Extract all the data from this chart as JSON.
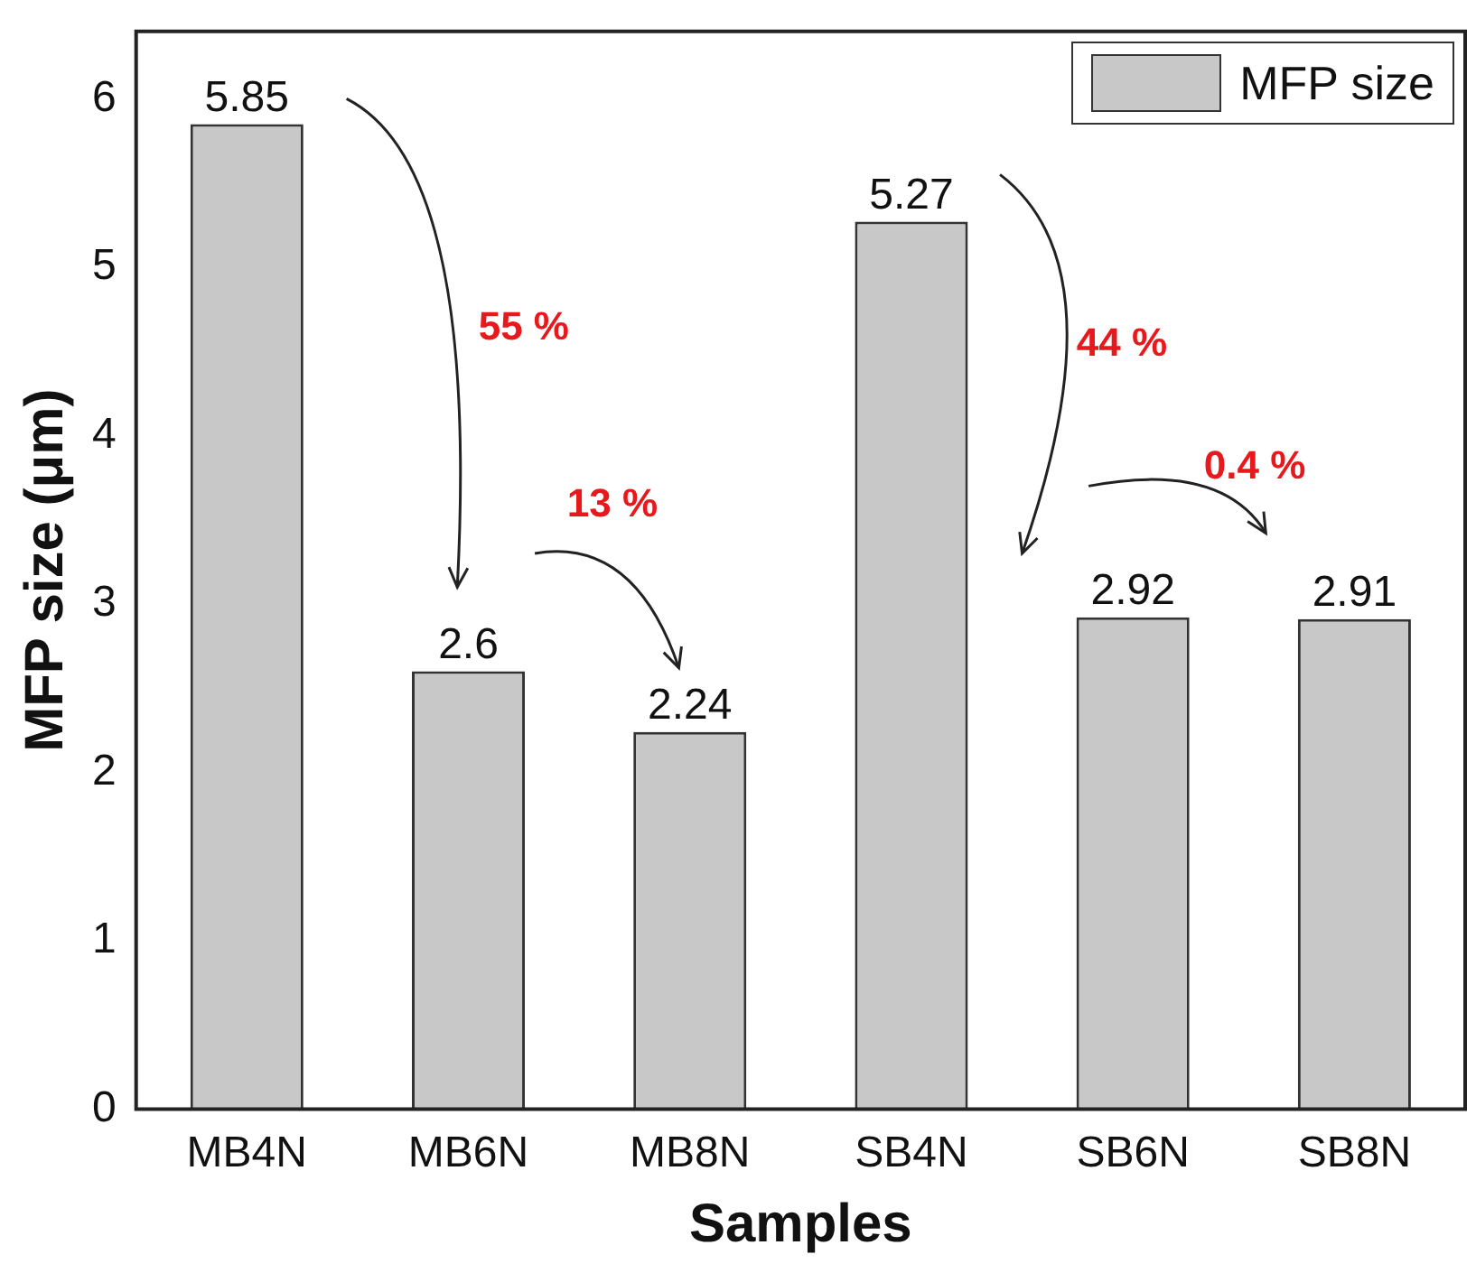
{
  "chart_data": {
    "type": "bar",
    "xlabel": "Samples",
    "ylabel": "MFP size (μm)",
    "categories": [
      "MB4N",
      "MB6N",
      "MB8N",
      "SB4N",
      "SB6N",
      "SB8N"
    ],
    "series": [
      {
        "name": "MFP size",
        "color": "#c8c8c8",
        "values": [
          5.85,
          2.6,
          2.24,
          5.27,
          2.92,
          2.91
        ]
      }
    ],
    "ylim": [
      0,
      6.4
    ],
    "yticks": [
      0,
      1,
      2,
      3,
      4,
      5,
      6
    ],
    "grid": false,
    "legend": "top right",
    "data_labels": true,
    "annotations": [
      "55 %",
      "13 %",
      "44 %",
      "0.4 %"
    ]
  }
}
